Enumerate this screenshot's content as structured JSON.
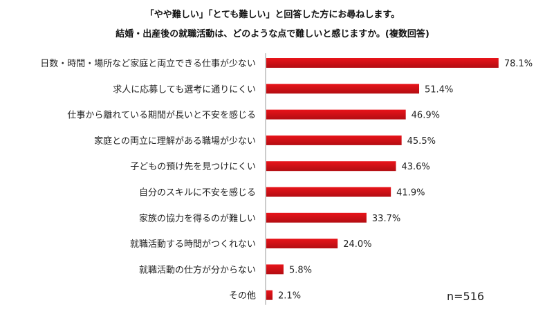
{
  "chart_data": {
    "type": "bar",
    "orientation": "horizontal",
    "title": "「やや難しい」「とても難しい」と回答した方にお尋ねします。",
    "subtitle": "結婚・出産後の就職活動は、どのような点で難しいと感じますか。(複数回答)",
    "categories": [
      "日数・時間・場所など家庭と両立できる仕事が少ない",
      "求人に応募しても選考に通りにくい",
      "仕事から離れている期間が長いと不安を感じる",
      "家庭との両立に理解がある職場が少ない",
      "子どもの預け先を見つけにくい",
      "自分のスキルに不安を感じる",
      "家族の協力を得るのが難しい",
      "就職活動する時間がつくれない",
      "就職活動の仕方が分からない",
      "その他"
    ],
    "values": [
      78.1,
      51.4,
      46.9,
      45.5,
      43.6,
      41.9,
      33.7,
      24.0,
      5.8,
      2.1
    ],
    "value_labels": [
      "78.1%",
      "51.4%",
      "46.9%",
      "45.5%",
      "43.6%",
      "41.9%",
      "33.7%",
      "24.0%",
      "5.8%",
      "2.1%"
    ],
    "sample_size_label": "n=516",
    "bar_color": "#e8141a",
    "bar_gradient_end": "#b30d12",
    "axis_color": "#9a9a9a",
    "xlim": [
      0,
      100
    ]
  }
}
